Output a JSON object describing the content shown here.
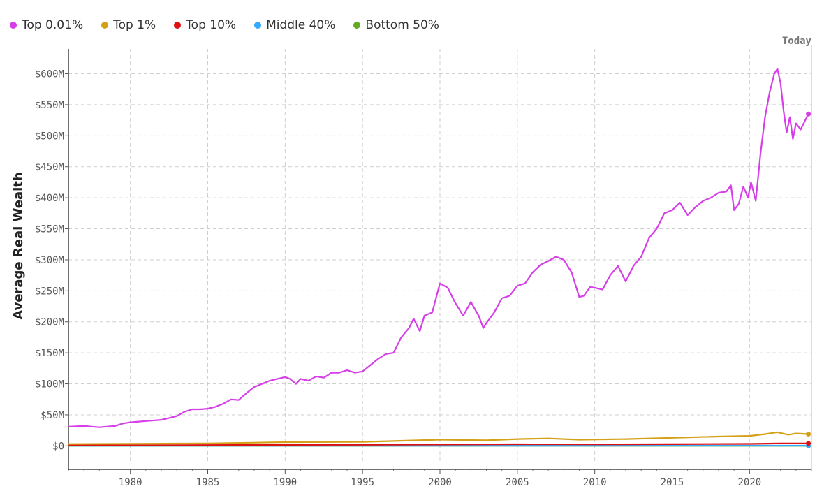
{
  "chart_data": {
    "type": "line",
    "ylabel": "Average Real Wealth",
    "xlabel": "",
    "today_label": "Today",
    "xlim": [
      1976,
      2024
    ],
    "ylim": [
      -30,
      640
    ],
    "x_ticks": [
      1980,
      1985,
      1990,
      1995,
      2000,
      2005,
      2010,
      2015,
      2020
    ],
    "y_ticks": [
      {
        "value": 0,
        "label": "$0"
      },
      {
        "value": 50,
        "label": "$50M"
      },
      {
        "value": 100,
        "label": "$100M"
      },
      {
        "value": 150,
        "label": "$150M"
      },
      {
        "value": 200,
        "label": "$200M"
      },
      {
        "value": 250,
        "label": "$250M"
      },
      {
        "value": 300,
        "label": "$300M"
      },
      {
        "value": 350,
        "label": "$350M"
      },
      {
        "value": 400,
        "label": "$400M"
      },
      {
        "value": 450,
        "label": "$450M"
      },
      {
        "value": 500,
        "label": "$500M"
      },
      {
        "value": 550,
        "label": "$550M"
      },
      {
        "value": 600,
        "label": "$600M"
      }
    ],
    "grid": true,
    "legend_position": "top-left",
    "series": [
      {
        "name": "Top 0.01%",
        "color": "#d63ee8",
        "x": [
          1976,
          1977,
          1978,
          1979,
          1979.5,
          1980,
          1981,
          1982,
          1982.5,
          1983,
          1983.5,
          1984,
          1984.5,
          1985,
          1985.5,
          1986,
          1986.5,
          1987,
          1987.5,
          1988,
          1988.5,
          1989,
          1989.5,
          1990,
          1990.3,
          1990.7,
          1991,
          1991.5,
          1992,
          1992.5,
          1993,
          1993.5,
          1994,
          1994.5,
          1995,
          1995.5,
          1996,
          1996.5,
          1997,
          1997.5,
          1998,
          1998.3,
          1998.7,
          1999,
          1999.5,
          2000,
          2000.5,
          2001,
          2001.5,
          2002,
          2002.5,
          2002.8,
          2003,
          2003.5,
          2004,
          2004.5,
          2005,
          2005.5,
          2006,
          2006.5,
          2007,
          2007.5,
          2008,
          2008.5,
          2009,
          2009.3,
          2009.7,
          2010,
          2010.5,
          2011,
          2011.5,
          2012,
          2012.5,
          2013,
          2013.5,
          2014,
          2014.5,
          2015,
          2015.5,
          2016,
          2016.5,
          2017,
          2017.5,
          2018,
          2018.5,
          2018.8,
          2019,
          2019.3,
          2019.6,
          2019.9,
          2020.1,
          2020.4,
          2020.7,
          2021,
          2021.3,
          2021.6,
          2021.8,
          2022,
          2022.2,
          2022.4,
          2022.6,
          2022.8,
          2023,
          2023.3,
          2023.6,
          2023.8
        ],
        "values": [
          31,
          32,
          30,
          32,
          36,
          38,
          40,
          42,
          45,
          48,
          55,
          59,
          59,
          60,
          63,
          68,
          75,
          74,
          85,
          95,
          100,
          105,
          108,
          111,
          108,
          100,
          108,
          105,
          112,
          110,
          118,
          118,
          122,
          118,
          120,
          130,
          140,
          148,
          150,
          175,
          190,
          205,
          185,
          210,
          215,
          262,
          255,
          230,
          210,
          232,
          210,
          190,
          198,
          215,
          238,
          242,
          258,
          262,
          280,
          292,
          298,
          305,
          300,
          280,
          240,
          242,
          256,
          255,
          252,
          275,
          290,
          265,
          290,
          305,
          335,
          350,
          375,
          380,
          392,
          372,
          385,
          395,
          400,
          408,
          410,
          420,
          380,
          390,
          418,
          400,
          425,
          395,
          470,
          530,
          570,
          600,
          608,
          585,
          540,
          505,
          530,
          495,
          520,
          510,
          525,
          535
        ]
      },
      {
        "name": "Top 1%",
        "color": "#d4a017",
        "x": [
          1976,
          1980,
          1985,
          1990,
          1995,
          2000,
          2003,
          2005,
          2007,
          2009,
          2012,
          2015,
          2018,
          2020,
          2021,
          2021.8,
          2022.5,
          2023,
          2023.8
        ],
        "values": [
          3,
          3.5,
          4,
          6,
          6.5,
          10,
          9,
          11,
          12,
          10,
          11,
          13,
          15,
          16,
          19,
          22,
          18,
          20,
          19
        ]
      },
      {
        "name": "Top 10%",
        "color": "#dd1111",
        "x": [
          1976,
          1980,
          1985,
          1990,
          1995,
          2000,
          2005,
          2010,
          2015,
          2020,
          2022,
          2023.8
        ],
        "values": [
          1,
          1,
          1.3,
          1.6,
          1.8,
          2.2,
          2.6,
          2.4,
          2.8,
          3.2,
          4,
          4
        ]
      },
      {
        "name": "Middle 40%",
        "color": "#33aaff",
        "x": [
          1976,
          1990,
          2000,
          2010,
          2020,
          2023.8
        ],
        "values": [
          0.2,
          0.25,
          0.3,
          0.3,
          0.35,
          0.4
        ]
      },
      {
        "name": "Bottom 50%",
        "color": "#66aa22",
        "x": [
          1976,
          1990,
          2000,
          2010,
          2020,
          2023.8
        ],
        "values": [
          0.02,
          0.03,
          0.03,
          0.02,
          0.04,
          0.05
        ]
      }
    ]
  }
}
